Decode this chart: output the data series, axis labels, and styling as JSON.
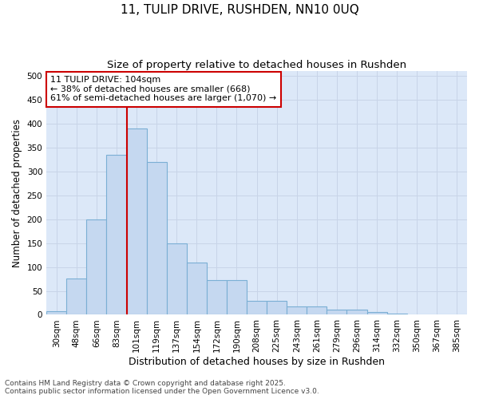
{
  "title": "11, TULIP DRIVE, RUSHDEN, NN10 0UQ",
  "subtitle": "Size of property relative to detached houses in Rushden",
  "xlabel": "Distribution of detached houses by size in Rushden",
  "ylabel": "Number of detached properties",
  "categories": [
    "30sqm",
    "48sqm",
    "66sqm",
    "83sqm",
    "101sqm",
    "119sqm",
    "137sqm",
    "154sqm",
    "172sqm",
    "190sqm",
    "208sqm",
    "225sqm",
    "243sqm",
    "261sqm",
    "279sqm",
    "296sqm",
    "314sqm",
    "332sqm",
    "350sqm",
    "367sqm",
    "385sqm"
  ],
  "values": [
    8,
    76,
    200,
    335,
    390,
    320,
    150,
    110,
    73,
    73,
    30,
    29,
    17,
    17,
    10,
    10,
    6,
    2,
    1,
    1,
    0
  ],
  "bar_color": "#c5d8f0",
  "bar_edge_color": "#7bafd4",
  "red_line_color": "#cc0000",
  "red_line_bin": 4,
  "annotation_text": "11 TULIP DRIVE: 104sqm\n← 38% of detached houses are smaller (668)\n61% of semi-detached houses are larger (1,070) →",
  "annotation_box_facecolor": "#ffffff",
  "annotation_box_edgecolor": "#cc0000",
  "grid_color": "#c8d4e8",
  "plot_bg_color": "#dce8f8",
  "fig_bg_color": "#ffffff",
  "ylim": [
    0,
    510
  ],
  "yticks": [
    0,
    50,
    100,
    150,
    200,
    250,
    300,
    350,
    400,
    450,
    500
  ],
  "title_fontsize": 11,
  "subtitle_fontsize": 9.5,
  "xlabel_fontsize": 9,
  "ylabel_fontsize": 8.5,
  "tick_fontsize": 7.5,
  "annotation_fontsize": 8,
  "footer_fontsize": 6.5,
  "footer": "Contains HM Land Registry data © Crown copyright and database right 2025.\nContains public sector information licensed under the Open Government Licence v3.0."
}
